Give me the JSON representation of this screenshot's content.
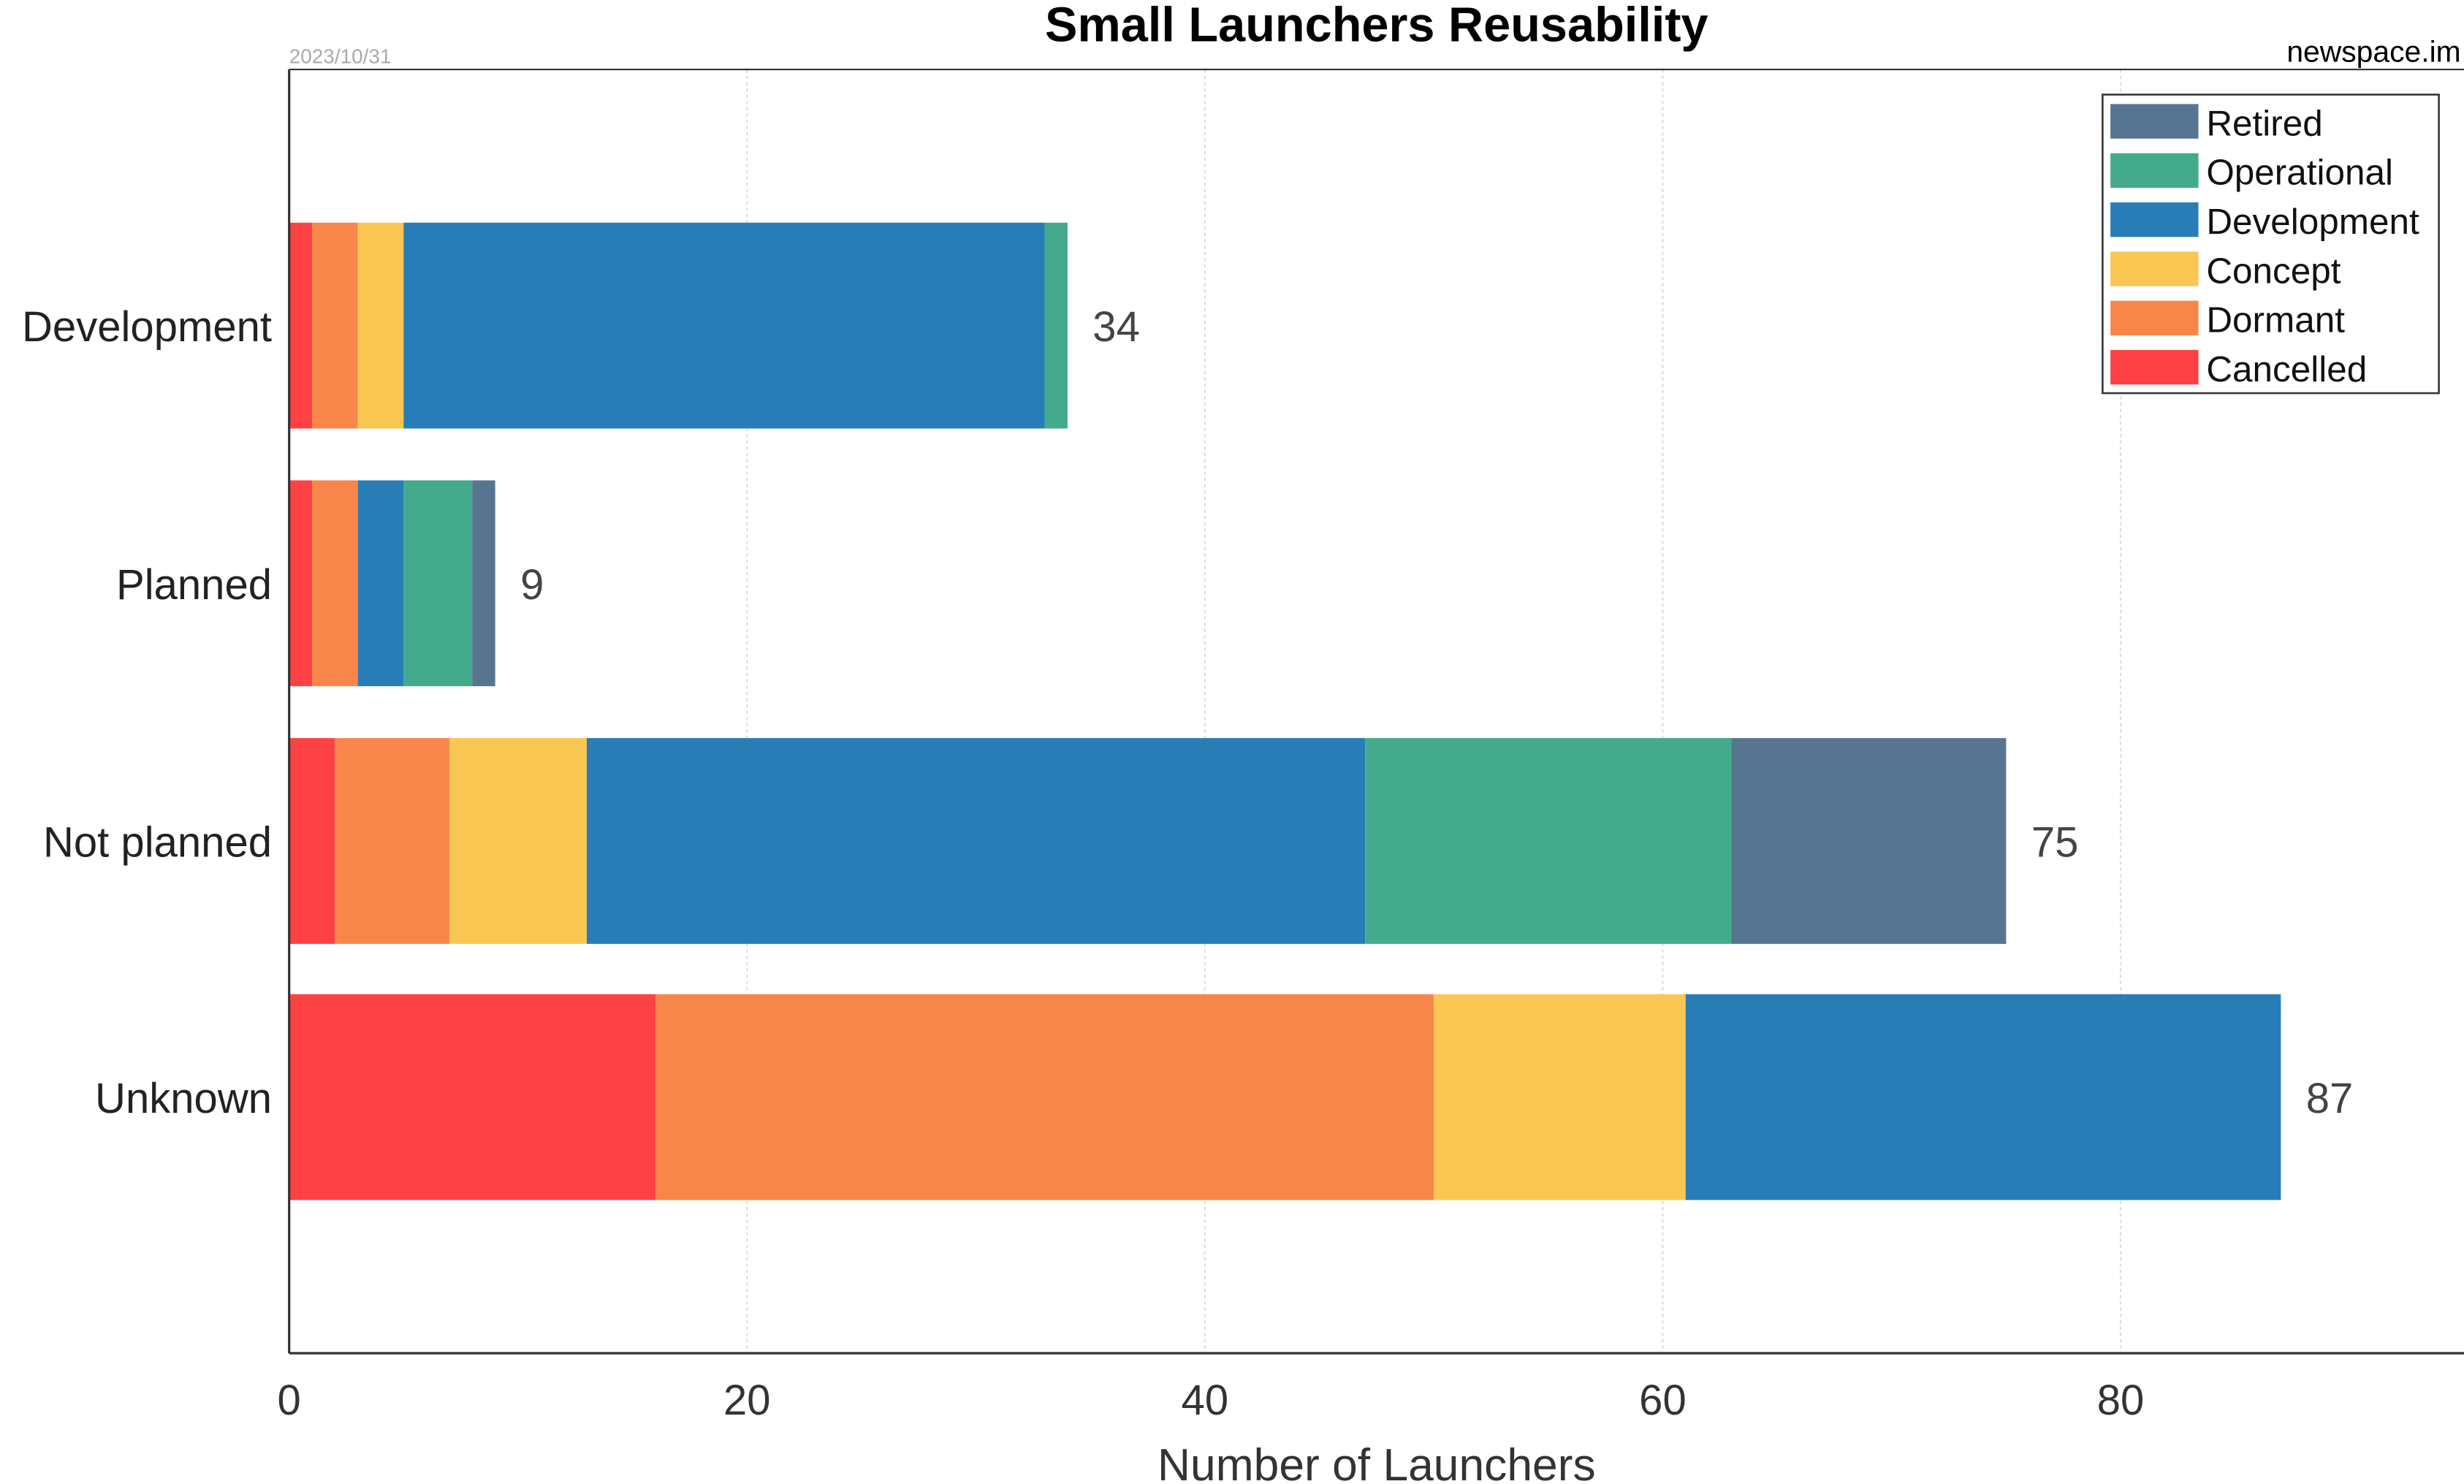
{
  "chart_data": {
    "type": "bar",
    "orientation": "horizontal",
    "stacked": true,
    "title": "Small Launchers Reusability",
    "date": "2023/10/31",
    "source": "newspace.im",
    "xlabel": "Number of Launchers",
    "ylabel": "",
    "xlim": [
      0,
      95
    ],
    "xticks": [
      0,
      20,
      40,
      60,
      80
    ],
    "grid": true,
    "legend_placement": "top-right",
    "categories": [
      "Development",
      "Planned",
      "Not planned",
      "Unknown"
    ],
    "totals": [
      34,
      9,
      75,
      87
    ],
    "series": [
      {
        "name": "Cancelled",
        "color": "#fc4245",
        "values": [
          1,
          1,
          2,
          16
        ]
      },
      {
        "name": "Dormant",
        "color": "#f8864b",
        "values": [
          2,
          2,
          5,
          34
        ]
      },
      {
        "name": "Concept",
        "color": "#f9c752",
        "values": [
          2,
          0,
          6,
          11
        ]
      },
      {
        "name": "Development",
        "color": "#287db6",
        "values": [
          28,
          2,
          34,
          26
        ]
      },
      {
        "name": "Operational",
        "color": "#43aa8b",
        "values": [
          1,
          3,
          16,
          0
        ]
      },
      {
        "name": "Retired",
        "color": "#577590",
        "values": [
          0,
          1,
          12,
          0
        ]
      }
    ]
  }
}
